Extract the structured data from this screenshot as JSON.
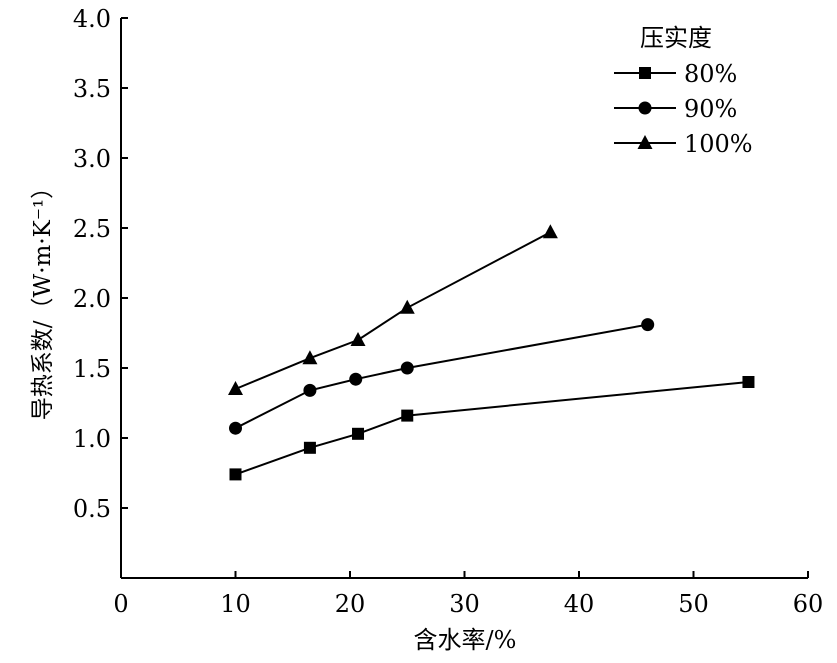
{
  "chart_data": {
    "type": "line",
    "title": "",
    "xlabel": "含水率/%",
    "ylabel": "导热系数/（W·m·K⁻¹）",
    "xlim": [
      0,
      60
    ],
    "ylim": [
      0,
      4.0
    ],
    "xticks": [
      "0",
      "10",
      "20",
      "30",
      "40",
      "50",
      "60"
    ],
    "yticks": [
      "0.5",
      "1.0",
      "1.5",
      "2.0",
      "2.5",
      "3.0",
      "3.5",
      "4.0"
    ],
    "grid": false,
    "legend": {
      "title": "压实度",
      "placement": "top-right"
    },
    "series": [
      {
        "name": "80%",
        "marker": "square",
        "x": [
          10,
          16.5,
          20.7,
          25,
          54.8
        ],
        "y": [
          0.74,
          0.93,
          1.03,
          1.16,
          1.4
        ]
      },
      {
        "name": "90%",
        "marker": "circle",
        "x": [
          10,
          16.5,
          20.5,
          25,
          46
        ],
        "y": [
          1.07,
          1.34,
          1.42,
          1.5,
          1.81
        ]
      },
      {
        "name": "100%",
        "marker": "triangle",
        "x": [
          10,
          16.5,
          20.7,
          25,
          37.5
        ],
        "y": [
          1.35,
          1.57,
          1.7,
          1.93,
          2.47
        ]
      }
    ]
  }
}
